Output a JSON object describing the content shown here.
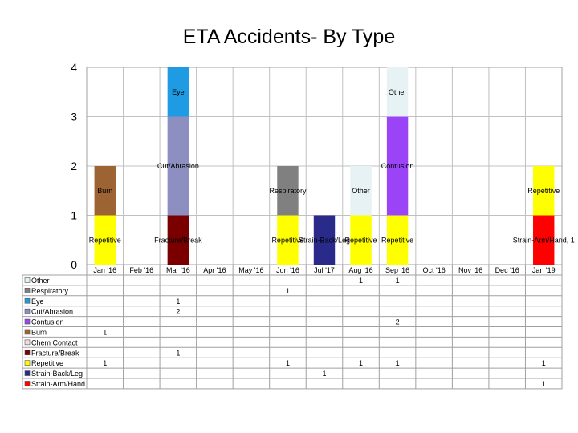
{
  "chart_data": {
    "type": "bar",
    "stacked": true,
    "title": "ETA Accidents- By Type",
    "ylim": [
      0,
      4
    ],
    "y_ticks": [
      "0",
      "1",
      "2",
      "3",
      "4"
    ],
    "categories": [
      "Jan '16",
      "Feb '16",
      "Mar '16",
      "Apr '16",
      "May '16",
      "Jun '16",
      "Jul '17",
      "Aug '16",
      "Sep '16",
      "Oct '16",
      "Nov '16",
      "Dec '16",
      "Jan '19"
    ],
    "series": [
      {
        "name": "Other",
        "color": "#e6f2f4",
        "values": [
          null,
          null,
          null,
          null,
          null,
          null,
          null,
          1,
          1,
          null,
          null,
          null,
          null
        ],
        "display": [
          "",
          "",
          "",
          "",
          "",
          "",
          "",
          "1",
          "1",
          "",
          "",
          "",
          ""
        ]
      },
      {
        "name": "Respiratory",
        "color": "#808080",
        "values": [
          null,
          null,
          null,
          null,
          null,
          1,
          null,
          null,
          null,
          null,
          null,
          null,
          null
        ],
        "display": [
          "",
          "",
          "",
          "",
          "",
          "1",
          "",
          "",
          "",
          "",
          "",
          "",
          ""
        ]
      },
      {
        "name": "Eye",
        "color": "#1e9be3",
        "values": [
          null,
          null,
          1,
          null,
          null,
          null,
          null,
          null,
          null,
          null,
          null,
          null,
          null
        ],
        "display": [
          "",
          "",
          "1",
          "",
          "",
          "",
          "",
          "",
          "",
          "",
          "",
          "",
          ""
        ]
      },
      {
        "name": "Cut/Abrasion",
        "color": "#8c8fbf",
        "values": [
          null,
          null,
          2,
          null,
          null,
          null,
          null,
          null,
          null,
          null,
          null,
          null,
          null
        ],
        "display": [
          "",
          "",
          "2",
          "",
          "",
          "",
          "",
          "",
          "",
          "",
          "",
          "",
          ""
        ]
      },
      {
        "name": "Contusion",
        "color": "#9a43f7",
        "values": [
          null,
          null,
          null,
          null,
          null,
          null,
          null,
          null,
          2,
          null,
          null,
          null,
          null
        ],
        "display": [
          "",
          "",
          "",
          "",
          "",
          "",
          "",
          "",
          "2",
          "",
          "",
          "",
          ""
        ]
      },
      {
        "name": "Burn",
        "color": "#9c6333",
        "values": [
          1,
          null,
          null,
          null,
          null,
          null,
          null,
          null,
          null,
          null,
          null,
          null,
          null
        ],
        "display": [
          "1",
          "",
          "",
          "",
          "",
          "",
          "",
          "",
          "",
          "",
          "",
          "",
          ""
        ]
      },
      {
        "name": "Chem Contact",
        "color": "#f2dcdc",
        "values": [
          null,
          null,
          null,
          null,
          null,
          null,
          null,
          null,
          null,
          null,
          null,
          null,
          null
        ],
        "display": [
          "",
          "",
          "",
          "",
          "",
          "",
          "",
          "",
          "",
          "",
          "",
          "",
          ""
        ]
      },
      {
        "name": "Fracture/Break",
        "color": "#7a0000",
        "values": [
          null,
          null,
          1,
          null,
          null,
          null,
          null,
          null,
          null,
          null,
          null,
          null,
          null
        ],
        "display": [
          "",
          "",
          "1",
          "",
          "",
          "",
          "",
          "",
          "",
          "",
          "",
          "",
          ""
        ]
      },
      {
        "name": "Repetitive",
        "color": "#ffff00",
        "values": [
          1,
          null,
          null,
          null,
          null,
          1,
          null,
          1,
          1,
          null,
          null,
          null,
          1
        ],
        "display": [
          "1",
          "",
          "",
          "",
          "",
          "1",
          "",
          "1",
          "1",
          "",
          "",
          "",
          "1"
        ]
      },
      {
        "name": "Strain-Back/Leg",
        "color": "#2a2a8a",
        "values": [
          null,
          null,
          null,
          null,
          null,
          null,
          1,
          null,
          null,
          null,
          null,
          null,
          null
        ],
        "display": [
          "",
          "",
          "",
          "",
          "",
          "",
          "1",
          "",
          "",
          "",
          "",
          "",
          ""
        ]
      },
      {
        "name": "Strain-Arm/Hand",
        "color": "#ff0000",
        "values": [
          null,
          null,
          null,
          null,
          null,
          null,
          null,
          null,
          null,
          null,
          null,
          null,
          1
        ],
        "display": [
          "",
          "",
          "",
          "",
          "",
          "",
          "",
          "",
          "",
          "",
          "",
          "",
          "1"
        ]
      }
    ],
    "stack_order": [
      "Strain-Arm/Hand",
      "Strain-Back/Leg",
      "Repetitive",
      "Fracture/Break",
      "Chem Contact",
      "Burn",
      "Contusion",
      "Cut/Abrasion",
      "Eye",
      "Respiratory",
      "Other"
    ],
    "segment_labels": [
      {
        "category": "Jan '16",
        "series": "Repetitive",
        "text": "Repetitive"
      },
      {
        "category": "Jan '16",
        "series": "Burn",
        "text": "Burn"
      },
      {
        "category": "Mar '16",
        "series": "Fracture/Break",
        "text": "Fracture/Break"
      },
      {
        "category": "Mar '16",
        "series": "Cut/Abrasion",
        "text": "Cut/Abrasion"
      },
      {
        "category": "Mar '16",
        "series": "Eye",
        "text": "Eye"
      },
      {
        "category": "Jun '16",
        "series": "Repetitive",
        "text": "Repetitive"
      },
      {
        "category": "Jun '16",
        "series": "Respiratory",
        "text": "Respiratory"
      },
      {
        "category": "Jul '17",
        "series": "Strain-Back/Leg",
        "text": "Strain-Back/Leg"
      },
      {
        "category": "Aug '16",
        "series": "Repetitive",
        "text": "Repetitive"
      },
      {
        "category": "Aug '16",
        "series": "Other",
        "text": "Other"
      },
      {
        "category": "Sep '16",
        "series": "Repetitive",
        "text": "Repetitive"
      },
      {
        "category": "Sep '16",
        "series": "Contusion",
        "text": "Contusion"
      },
      {
        "category": "Sep '16",
        "series": "Other",
        "text": "Other"
      },
      {
        "category": "Jan '19",
        "series": "Strain-Arm/Hand",
        "text": "Strain-Arm/Hand, 1"
      },
      {
        "category": "Jan '19",
        "series": "Repetitive",
        "text": "Repetitive"
      }
    ],
    "grid": true,
    "legend": "data-table-left"
  }
}
